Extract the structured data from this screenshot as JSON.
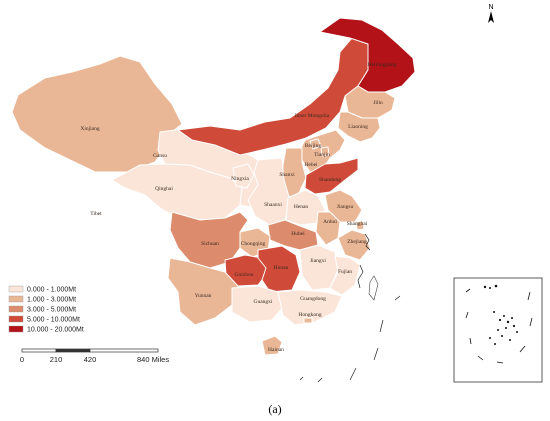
{
  "legend": {
    "items": [
      {
        "label": "0.000 - 1.000Mt",
        "color": "#fbe5d8"
      },
      {
        "label": "1.000 - 3.000Mt",
        "color": "#eab796"
      },
      {
        "label": "3.000 - 5.000Mt",
        "color": "#dc8c6c"
      },
      {
        "label": "5.000 - 10.000Mt",
        "color": "#cf4a38"
      },
      {
        "label": "10.000 - 20.000Mt",
        "color": "#b21218"
      }
    ]
  },
  "scalebar": {
    "ticks": [
      "0",
      "210",
      "420",
      "840 Miles"
    ]
  },
  "north_label": "N",
  "caption": "(a)",
  "provinces": {
    "heilongjiang": "Heilongjiang",
    "jilin": "Jilin",
    "liaoning": "Liaoning",
    "inner_mongolia": "Inner Mongolia",
    "xinjiang": "Xinjiang",
    "gansu": "Gansu",
    "beijing": "Beijing",
    "tianjin": "Tianjin",
    "hebei": "Hebei",
    "ningxia": "Ningxia",
    "shanxi": "Shanxi",
    "shandong": "Shandong",
    "qinghai": "Qinghai",
    "shaanxi": "Shaanxi",
    "henan": "Henan",
    "jiangsu": "Jiangsu",
    "anhui": "Anhui",
    "shanghai": "Shanghai",
    "tibet": "Tibet",
    "sichuan": "Sichuan",
    "chongqing": "Chongqing",
    "hubei": "Hubei",
    "zhejiang": "Zhejiang",
    "hunan": "Hunan",
    "jiangxi": "Jiangxi",
    "fujian": "Fujian",
    "guizhou": "Guizhou",
    "yunnan": "Yunnan",
    "guangxi": "Guangxi",
    "guangdong": "Guangdong",
    "hongkong": "Hongkong",
    "hainan": "Hainan"
  }
}
